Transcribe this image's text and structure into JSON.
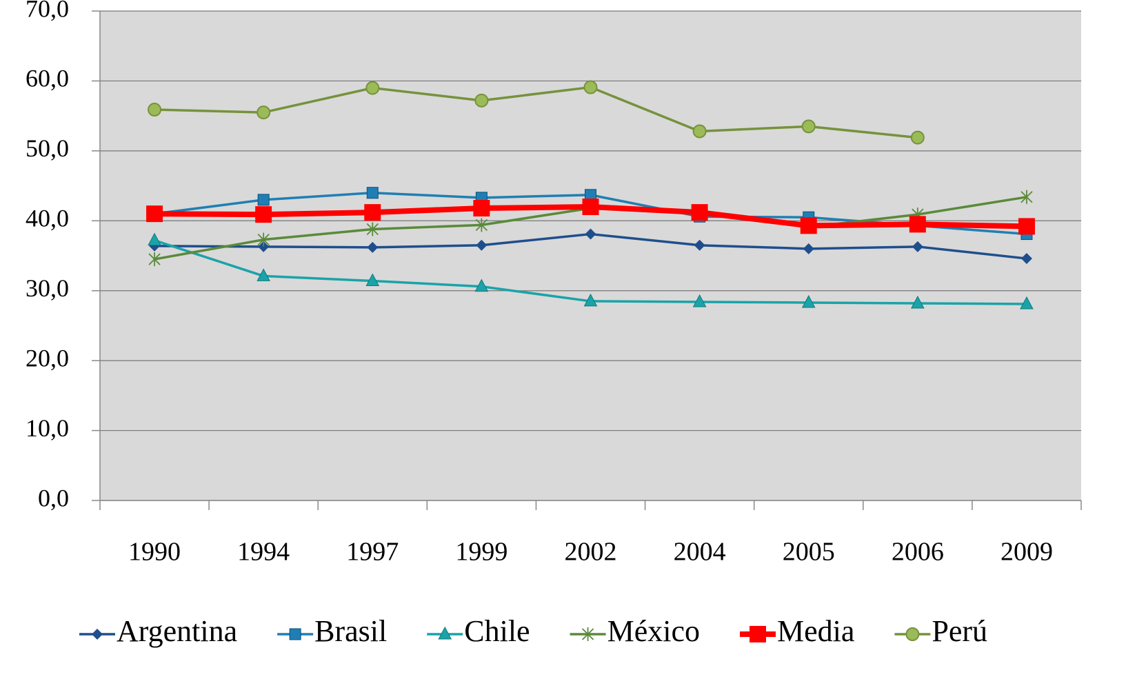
{
  "chart_data": {
    "type": "line",
    "categories": [
      "1990",
      "1994",
      "1997",
      "1999",
      "2002",
      "2004",
      "2005",
      "2006",
      "2009"
    ],
    "series": [
      {
        "name": "Argentina",
        "color": "#1f4e8c",
        "marker": "diamond",
        "values": [
          36.4,
          36.3,
          36.2,
          36.5,
          38.1,
          36.5,
          36.0,
          36.3,
          34.6
        ]
      },
      {
        "name": "Brasil",
        "color": "#1f7fb4",
        "marker": "square",
        "values": [
          41.0,
          43.0,
          44.0,
          43.3,
          43.7,
          40.6,
          40.5,
          39.3,
          38.1
        ]
      },
      {
        "name": "Chile",
        "color": "#1aa3a8",
        "marker": "triangle",
        "values": [
          37.2,
          32.1,
          31.4,
          30.6,
          28.5,
          28.4,
          28.3,
          28.2,
          28.1
        ]
      },
      {
        "name": "México",
        "color": "#5a8a3a",
        "marker": "star",
        "values": [
          34.5,
          37.3,
          38.8,
          39.4,
          41.8,
          41.0,
          39.1,
          40.9,
          43.4
        ]
      },
      {
        "name": "Media",
        "color": "#ff0000",
        "marker": "bigsquare",
        "values": [
          41.0,
          40.9,
          41.2,
          41.8,
          42.0,
          41.2,
          39.3,
          39.5,
          39.2
        ]
      },
      {
        "name": "Perú",
        "color": "#76923c",
        "marker": "circle",
        "values": [
          55.9,
          55.5,
          59.0,
          57.2,
          59.1,
          52.8,
          53.5,
          51.9,
          null
        ]
      }
    ],
    "ylim": [
      0,
      70
    ],
    "yticks": [
      {
        "value": 0,
        "label": "0,0"
      },
      {
        "value": 10,
        "label": "10,0"
      },
      {
        "value": 20,
        "label": "20,0"
      },
      {
        "value": 30,
        "label": "30,0"
      },
      {
        "value": 40,
        "label": "40,0"
      },
      {
        "value": 50,
        "label": "50,0"
      },
      {
        "value": 60,
        "label": "60,0"
      },
      {
        "value": 70,
        "label": "70,0"
      }
    ],
    "grid": true,
    "legend": "bottom"
  }
}
